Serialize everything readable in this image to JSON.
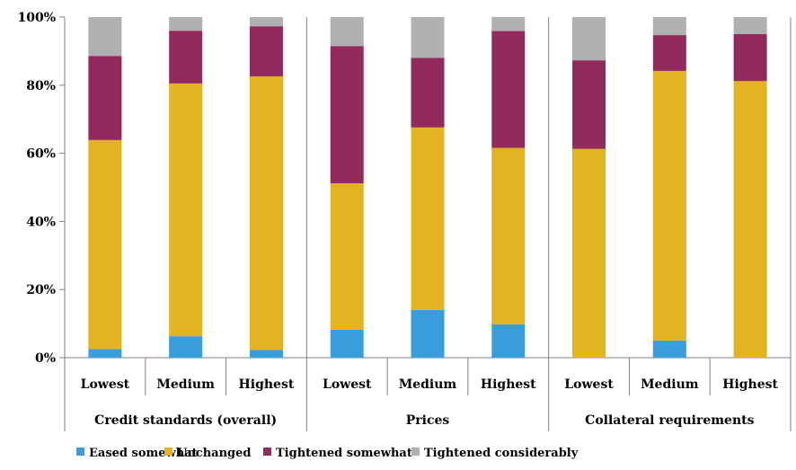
{
  "chart_data": {
    "type": "bar",
    "stacked": true,
    "normalized": true,
    "groups": [
      "Credit standards (overall)",
      "Prices",
      "Collateral requirements"
    ],
    "categories": [
      "Lowest",
      "Medium",
      "Highest",
      "Lowest",
      "Medium",
      "Highest",
      "Lowest",
      "Medium",
      "Highest"
    ],
    "series": [
      {
        "name": "Eased somewhat",
        "color": "#3a9ddc",
        "values": [
          2.5,
          6.3,
          2.3,
          8.2,
          14.0,
          9.8,
          0,
          5.0,
          0
        ]
      },
      {
        "name": "Unchanged",
        "color": "#e3b322",
        "values": [
          61.4,
          74.2,
          80.3,
          43.0,
          53.6,
          51.8,
          61.3,
          79.2,
          81.2
        ]
      },
      {
        "name": "Tightened somewhat",
        "color": "#922a5e",
        "values": [
          24.7,
          15.5,
          14.7,
          40.3,
          20.4,
          34.3,
          26.0,
          10.5,
          13.8
        ]
      },
      {
        "name": "Tightened considerably",
        "color": "#b0b0b0",
        "values": [
          11.4,
          4.0,
          2.7,
          8.5,
          12.0,
          4.1,
          12.7,
          5.3,
          5.0
        ]
      }
    ],
    "yticks": [
      "0%",
      "20%",
      "40%",
      "60%",
      "80%",
      "100%"
    ],
    "ylim": [
      0,
      100
    ],
    "grid": false,
    "legend_position": "bottom",
    "title": "",
    "xlabel": "",
    "ylabel": ""
  }
}
